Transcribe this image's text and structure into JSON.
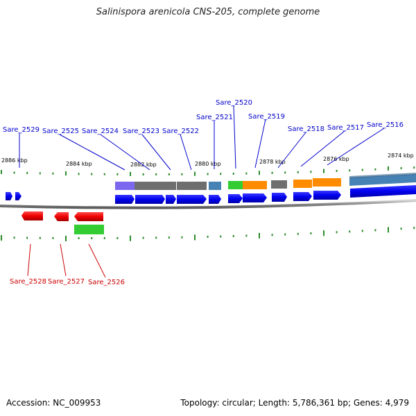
{
  "title": "Salinispora arenicola CNS-205, complete genome",
  "footer": {
    "accession": "Accession: NC_009953",
    "summary": "Topology: circular; Length: 5,786,361 bp; Genes: 4,979"
  },
  "ruler": [
    {
      "label": "2886 kbp"
    },
    {
      "label": "2884 kbp"
    },
    {
      "label": "2882 kbp"
    },
    {
      "label": "2880 kbp"
    },
    {
      "label": "2878 kbp"
    },
    {
      "label": "2876 kbp"
    },
    {
      "label": "2874 kbp"
    }
  ],
  "gene_labels_top": [
    {
      "text": "Sare_2529"
    },
    {
      "text": "Sare_2525"
    },
    {
      "text": "Sare_2524"
    },
    {
      "text": "Sare_2523"
    },
    {
      "text": "Sare_2522"
    },
    {
      "text": "Sare_2521"
    },
    {
      "text": "Sare_2520"
    },
    {
      "text": "Sare_2519"
    },
    {
      "text": "Sare_2518"
    },
    {
      "text": "Sare_2517"
    },
    {
      "text": "Sare_2516"
    }
  ],
  "gene_labels_bottom": [
    {
      "text": "Sare_2528"
    },
    {
      "text": "Sare_2527"
    },
    {
      "text": "Sare_2526"
    }
  ],
  "colors": {
    "forward_label": "#0000cc",
    "reverse_label": "#cc0000",
    "cds_forward": "#0000ee",
    "cds_reverse": "#ee0000",
    "tick": "#2a8a2a",
    "backbone": "#999999",
    "purple": "#7b68ee",
    "gray": "#6e6e6e",
    "steelblue": "#4682b4",
    "green": "#33cc33",
    "orange": "#ff8c00"
  }
}
